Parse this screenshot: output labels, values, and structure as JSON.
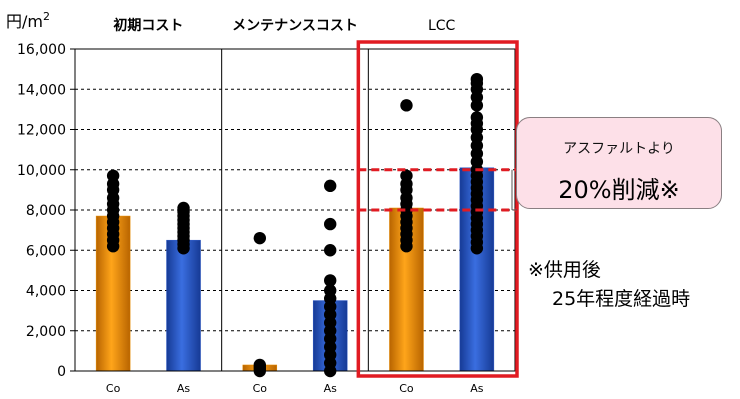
{
  "chart_data": {
    "type": "bar",
    "y_unit": "円/m",
    "y_unit_superscript": "2",
    "ylim": [
      0,
      16000
    ],
    "yticks": [
      "0",
      "2,000",
      "4,000",
      "6,000",
      "8,000",
      "10,000",
      "12,000",
      "14,000",
      "16,000"
    ],
    "grid": "dashed horizontal",
    "groups": [
      {
        "title": "初期コスト",
        "categories": [
          "Co",
          "As"
        ]
      },
      {
        "title": "メンテナンスコスト",
        "categories": [
          "Co",
          "As"
        ]
      },
      {
        "title": "LCC",
        "categories": [
          "Co",
          "As"
        ]
      }
    ],
    "bars": [
      {
        "group": 0,
        "label": "Co",
        "value": 7700,
        "color": "#e88c00",
        "points": [
          6200,
          6500,
          6800,
          7100,
          7400,
          7700,
          8000,
          8300,
          8600,
          9000,
          9300,
          9700
        ]
      },
      {
        "group": 0,
        "label": "As",
        "value": 6500,
        "color": "#2b57c4",
        "points": [
          6100,
          6300,
          6500,
          6700,
          6900,
          7100,
          7300,
          7500,
          7700,
          7900,
          8100
        ]
      },
      {
        "group": 1,
        "label": "Co",
        "value": 300,
        "color": "#e88c00",
        "points": [
          0,
          100,
          200,
          300,
          6600
        ]
      },
      {
        "group": 1,
        "label": "As",
        "value": 3500,
        "color": "#2b57c4",
        "points": [
          0,
          400,
          800,
          1200,
          1600,
          2000,
          2400,
          2800,
          3200,
          3600,
          4000,
          4500,
          6000,
          7300,
          9200
        ]
      },
      {
        "group": 2,
        "label": "Co",
        "value": 8100,
        "color": "#e88c00",
        "points": [
          6200,
          6500,
          6800,
          7100,
          7400,
          7700,
          8000,
          8300,
          8600,
          9000,
          9300,
          9700,
          13200
        ]
      },
      {
        "group": 2,
        "label": "As",
        "value": 10100,
        "color": "#2b57c4",
        "points": [
          6100,
          6400,
          6700,
          7000,
          7300,
          7600,
          7900,
          8200,
          8500,
          8800,
          9100,
          9400,
          9700,
          10000,
          10400,
          10800,
          11200,
          11600,
          12000,
          12300,
          12600,
          13200,
          13600,
          14000,
          14300,
          14500
        ]
      }
    ],
    "reference_lines": [
      8000,
      10000
    ],
    "highlight_group": 2
  },
  "callout": {
    "line1": "アスファルトより",
    "line2": "20%削減※"
  },
  "footnote": {
    "line1": "※供用後",
    "line2": "25年程度経過時"
  }
}
